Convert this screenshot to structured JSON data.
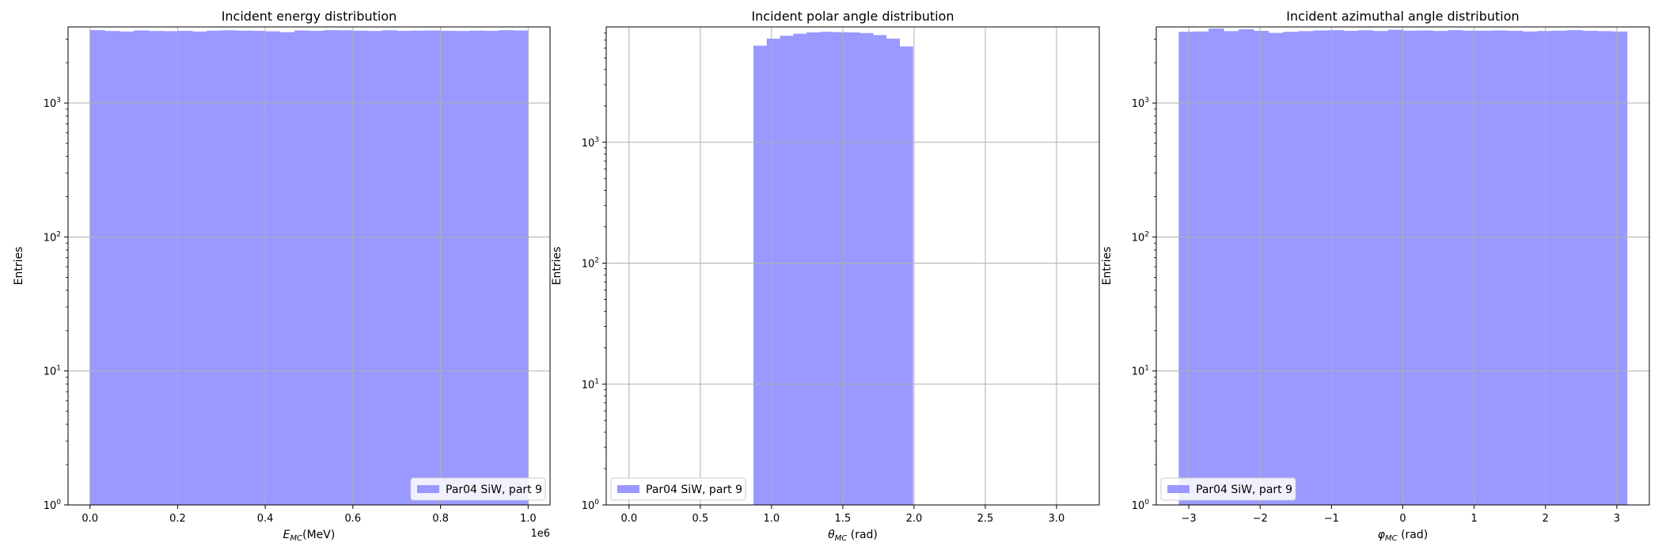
{
  "colors": {
    "bar": "#9999ff",
    "grid": "#b0b0b0",
    "axis": "#000000"
  },
  "chart_data": [
    {
      "type": "bar",
      "title": "Incident energy distribution",
      "xlabel_main": "E",
      "xlabel_sub": "MC",
      "xlabel_tail": "(MeV)",
      "ylabel": "Entries",
      "x_offset_text": "1e6",
      "yscale": "log",
      "ylim": [
        1,
        3700
      ],
      "xlim": [
        -0.05,
        1.05
      ],
      "xticks": [
        0,
        0.2,
        0.4,
        0.6,
        0.8,
        1.0
      ],
      "xtick_labels": [
        "0.0",
        "0.2",
        "0.4",
        "0.6",
        "0.8",
        "1.0"
      ],
      "legend": {
        "label": "Par04 SiW, part 9",
        "loc": "lower right"
      },
      "bin_edges_start": 0.0,
      "bin_width": 0.03333,
      "values": [
        3500,
        3450,
        3420,
        3480,
        3450,
        3440,
        3460,
        3420,
        3470,
        3490,
        3470,
        3460,
        3430,
        3380,
        3480,
        3460,
        3500,
        3490,
        3470,
        3450,
        3490,
        3460,
        3470,
        3480,
        3460,
        3450,
        3470,
        3460,
        3500,
        3480
      ]
    },
    {
      "type": "bar",
      "title": "Incident polar angle distribution",
      "xlabel_main": "θ",
      "xlabel_sub": "MC",
      "xlabel_tail": " (rad)",
      "ylabel": "Entries",
      "x_offset_text": "",
      "yscale": "log",
      "ylim": [
        1,
        9000
      ],
      "xlim": [
        -0.16,
        3.3
      ],
      "xticks": [
        0,
        0.5,
        1.0,
        1.5,
        2.0,
        2.5,
        3.0
      ],
      "xtick_labels": [
        "0.0",
        "0.5",
        "1.0",
        "1.5",
        "2.0",
        "2.5",
        "3.0"
      ],
      "legend": {
        "label": "Par04 SiW, part 9",
        "loc": "lower left"
      },
      "bin_edges_start": 0.873,
      "bin_width": 0.0931,
      "values": [
        6300,
        7200,
        7600,
        7900,
        8100,
        8200,
        8150,
        8100,
        8000,
        7700,
        7200,
        6200
      ]
    },
    {
      "type": "bar",
      "title": "Incident azimuthal angle distribution",
      "xlabel_main": "φ",
      "xlabel_sub": "MC",
      "xlabel_tail": " (rad)",
      "ylabel": "Entries",
      "x_offset_text": "",
      "yscale": "log",
      "ylim": [
        1,
        3700
      ],
      "xlim": [
        -3.456,
        3.456
      ],
      "xticks": [
        -3,
        -2,
        -1,
        0,
        1,
        2,
        3
      ],
      "xtick_labels": [
        "−3",
        "−2",
        "−1",
        "0",
        "1",
        "2",
        "3"
      ],
      "legend": {
        "label": "Par04 SiW, part 9",
        "loc": "lower left"
      },
      "bin_edges_start": -3.1416,
      "bin_width": 0.20944,
      "values": [
        3400,
        3420,
        3600,
        3440,
        3560,
        3460,
        3340,
        3400,
        3440,
        3480,
        3500,
        3460,
        3490,
        3450,
        3520,
        3470,
        3480,
        3450,
        3500,
        3470,
        3470,
        3480,
        3460,
        3420,
        3450,
        3470,
        3500,
        3460,
        3440,
        3420
      ]
    }
  ]
}
